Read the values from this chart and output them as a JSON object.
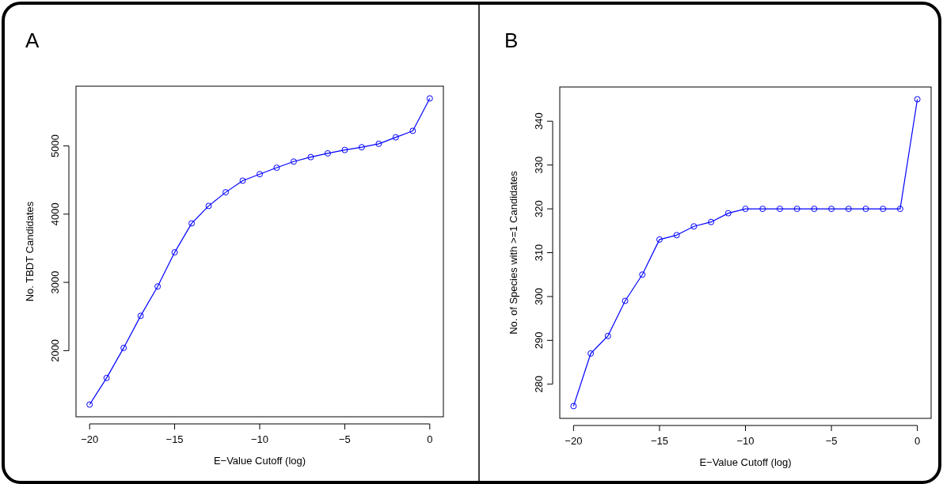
{
  "chart_data": [
    {
      "type": "line",
      "title": "A",
      "xlabel": "E−Value Cutoff (log)",
      "ylabel": "No. TBDT Candidates",
      "marker": "circle",
      "xlim": [
        -20.8,
        0.8
      ],
      "xticks": [
        {
          "value": -20,
          "label": "−20"
        },
        {
          "value": -15,
          "label": "−15"
        },
        {
          "value": -10,
          "label": "−10"
        },
        {
          "value": -5,
          "label": "−5"
        },
        0
      ],
      "ylim": [
        1031,
        5874
      ],
      "yticks": [
        2000,
        3000,
        4000,
        5000
      ],
      "x": [
        -20,
        -19,
        -18,
        -17,
        -16,
        -15,
        -14,
        -13,
        -12,
        -11,
        -10,
        -9,
        -8,
        -7,
        -6,
        -5,
        -4,
        -3,
        -2,
        -1,
        0
      ],
      "series": [
        {
          "color": "#0000ff",
          "values": [
            1210,
            1600,
            2040,
            2510,
            2940,
            3440,
            3865,
            4120,
            4320,
            4490,
            4585,
            4680,
            4770,
            4835,
            4890,
            4940,
            4980,
            5030,
            5125,
            5220,
            5695
          ]
        }
      ]
    },
    {
      "type": "line",
      "title": "B",
      "xlabel": "E−Value Cutoff (log)",
      "ylabel": "No. of Species with >=1 Candidates",
      "marker": "circle",
      "xlim": [
        -20.8,
        0.8
      ],
      "xticks": [
        {
          "value": -20,
          "label": "−20"
        },
        {
          "value": -15,
          "label": "−15"
        },
        {
          "value": -10,
          "label": "−10"
        },
        {
          "value": -5,
          "label": "−5"
        },
        0
      ],
      "ylim": [
        272.2,
        347.8
      ],
      "yticks": [
        280,
        290,
        300,
        310,
        320,
        330,
        340
      ],
      "x": [
        -20,
        -19,
        -18,
        -17,
        -16,
        -15,
        -14,
        -13,
        -12,
        -11,
        -10,
        -9,
        -8,
        -7,
        -6,
        -5,
        -4,
        -3,
        -2,
        -1,
        0
      ],
      "series": [
        {
          "color": "#0000ff",
          "values": [
            275,
            287,
            291,
            299,
            305,
            313,
            314,
            316,
            317,
            319,
            320,
            320,
            320,
            320,
            320,
            320,
            320,
            320,
            320,
            320,
            345
          ]
        }
      ]
    }
  ]
}
